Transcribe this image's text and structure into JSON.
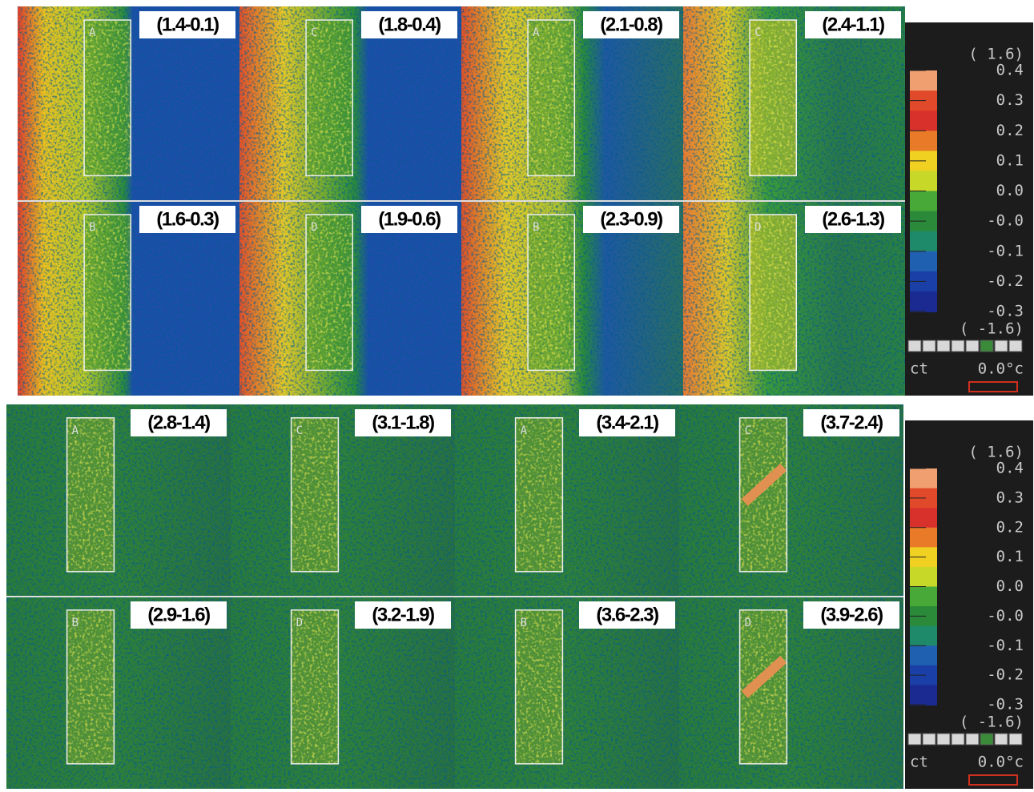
{
  "figure": {
    "blocks": [
      {
        "panels": [
          {
            "label": "(1.4-0.1)",
            "letter": "A"
          },
          {
            "label": "(1.8-0.4)",
            "letter": "C"
          },
          {
            "label": "(2.1-0.8)",
            "letter": "A"
          },
          {
            "label": "(2.4-1.1)",
            "letter": "C"
          },
          {
            "label": "(1.6-0.3)",
            "letter": "B"
          },
          {
            "label": "(1.9-0.6)",
            "letter": "D"
          },
          {
            "label": "(2.3-0.9)",
            "letter": "B"
          },
          {
            "label": "(2.6-1.3)",
            "letter": "D"
          }
        ],
        "legend": {
          "top": "( 1.6)",
          "ticks": [
            "0.4",
            "0.3",
            "0.2",
            "0.1",
            "0.0",
            "-0.0",
            "-0.1",
            "-0.2",
            "-0.3"
          ],
          "bottom": "( -1.6)",
          "unit": "ct",
          "reading": "0.0°c"
        }
      },
      {
        "panels": [
          {
            "label": "(2.8-1.4)",
            "letter": "A"
          },
          {
            "label": "(3.1-1.8)",
            "letter": "C"
          },
          {
            "label": "(3.4-2.1)",
            "letter": "A"
          },
          {
            "label": "(3.7-2.4)",
            "letter": "C"
          },
          {
            "label": "(2.9-1.6)",
            "letter": "B"
          },
          {
            "label": "(3.2-1.9)",
            "letter": "D"
          },
          {
            "label": "(3.6-2.3)",
            "letter": "B"
          },
          {
            "label": "(3.9-2.6)",
            "letter": "D"
          }
        ],
        "legend": {
          "top": "( 1.6)",
          "ticks": [
            "0.4",
            "0.3",
            "0.2",
            "0.1",
            "0.0",
            "-0.0",
            "-0.1",
            "-0.2",
            "-0.3"
          ],
          "bottom": "( -1.6)",
          "unit": "ct",
          "reading": "0.0°c"
        }
      }
    ]
  }
}
